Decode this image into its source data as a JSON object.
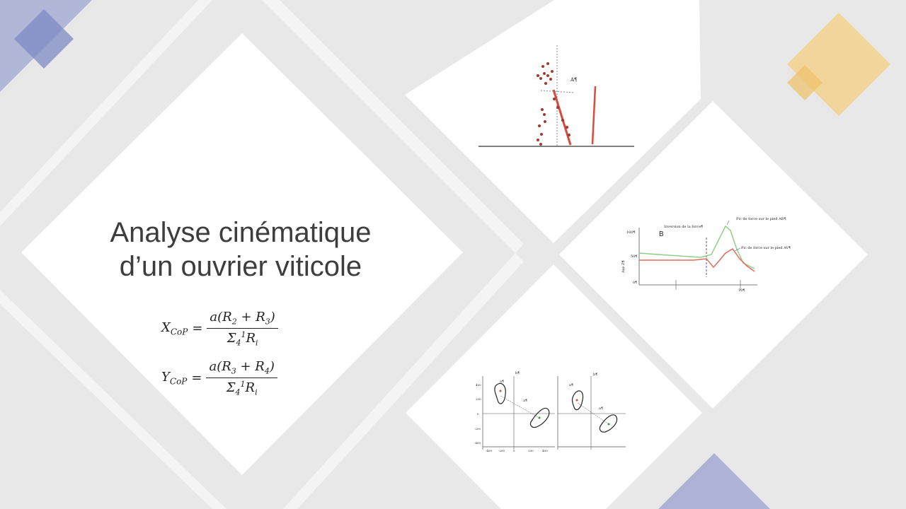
{
  "slide": {
    "title_line1": "Analyse cinématique",
    "title_line2": "d’un ouvrier viticole"
  },
  "formulas": {
    "x": {
      "lhs": "X",
      "lhs_sub": "CoP",
      "num_a": "a(R",
      "num_s1": "2",
      "num_mid": " + R",
      "num_s2": "3",
      "num_close": ")",
      "den_sigma": "Σ",
      "den_sub": "4",
      "den_sup": "1",
      "den_r": "R",
      "den_rsub": "i"
    },
    "y": {
      "lhs": "Y",
      "lhs_sub": "CoP",
      "num_a": "a(R",
      "num_s1": "3",
      "num_mid": " + R",
      "num_s2": "4",
      "num_close": ")",
      "den_sigma": "Σ",
      "den_sub": "4",
      "den_sup": "1",
      "den_r": "R",
      "den_rsub": "i"
    },
    "equals": "="
  },
  "figure_top": {
    "label": "A¶"
  },
  "figure_right": {
    "panel_letter": "B",
    "annot_inversion": "Inversion de la force¶",
    "annot_peak_back": "Pic de force sur le pied AR¶",
    "annot_peak_front": "Pic de force sur le pied AV¶",
    "tick_100": "100¶",
    "tick_50": "50¶",
    "tick_0": "0¶",
    "ylabel": "Axe Z¶",
    "xtick": "10¶"
  },
  "figure_bottom": {
    "left_tick_a": "a¶",
    "left_tick_b": "b¶",
    "left_tick_a2": "a¶",
    "right_tick_a": "a¶",
    "right_tick_b": "b¶",
    "right_tick_a2": "a¶",
    "yticks": [
      "400",
      "200",
      "0",
      "-200",
      "-400"
    ],
    "xticks": [
      "-400",
      "-200",
      "0",
      "200",
      "400"
    ]
  },
  "colors": {
    "background": "#e8e8e8",
    "diamond": "#ffffff",
    "accent_blue": "#8c96cc",
    "accent_gold": "#f2cf86",
    "red_trace": "#e26b5f",
    "green_trace": "#8fcf8a"
  }
}
